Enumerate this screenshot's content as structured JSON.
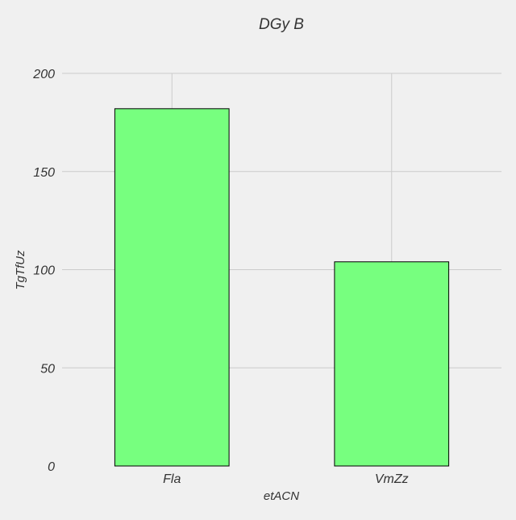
{
  "chart_data": {
    "type": "bar",
    "title": "DGy B",
    "xlabel": "etACN",
    "ylabel": "TgTfUz",
    "categories": [
      "Fla",
      "VmZz"
    ],
    "values": [
      182,
      104
    ],
    "ylim": [
      0,
      200
    ],
    "yticks": [
      0,
      50,
      100,
      150,
      200
    ],
    "ytick_labels": [
      "0",
      "50",
      "100",
      "150",
      "200"
    ],
    "grid": true,
    "bar_color": "#77ff7f",
    "edge_color": "#000000",
    "background_color": "#f0f0f0",
    "grid_color": "#cbcbcb"
  }
}
